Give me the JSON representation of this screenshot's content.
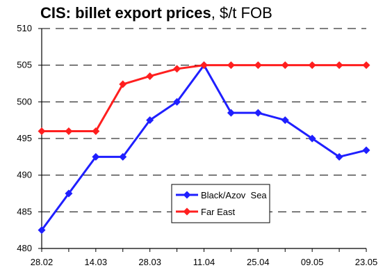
{
  "chart_data": {
    "type": "line",
    "title": "CIS: billet export prices",
    "title_unit": ", $/t FOB",
    "xlabel": "",
    "ylabel": "",
    "ylim": [
      480,
      510
    ],
    "yticks": [
      480,
      485,
      490,
      495,
      500,
      505,
      510
    ],
    "grid": true,
    "legend_position": "bottom-right",
    "x_tick_labels": [
      "28.02",
      "14.03",
      "28.03",
      "11.04",
      "25.04",
      "09.05",
      "23.05"
    ],
    "points_per_series": 13,
    "series": [
      {
        "name": "Black/Azov  Sea",
        "color": "#1f1fff",
        "values": [
          482.5,
          487.5,
          492.5,
          492.5,
          497.5,
          500,
          505,
          498.5,
          498.5,
          497.5,
          495,
          492.5,
          493.4
        ]
      },
      {
        "name": "Far East",
        "color": "#ff1f1f",
        "values": [
          496,
          496,
          496,
          502.4,
          503.5,
          504.5,
          505,
          505,
          505,
          505,
          505,
          505,
          505
        ]
      }
    ]
  }
}
